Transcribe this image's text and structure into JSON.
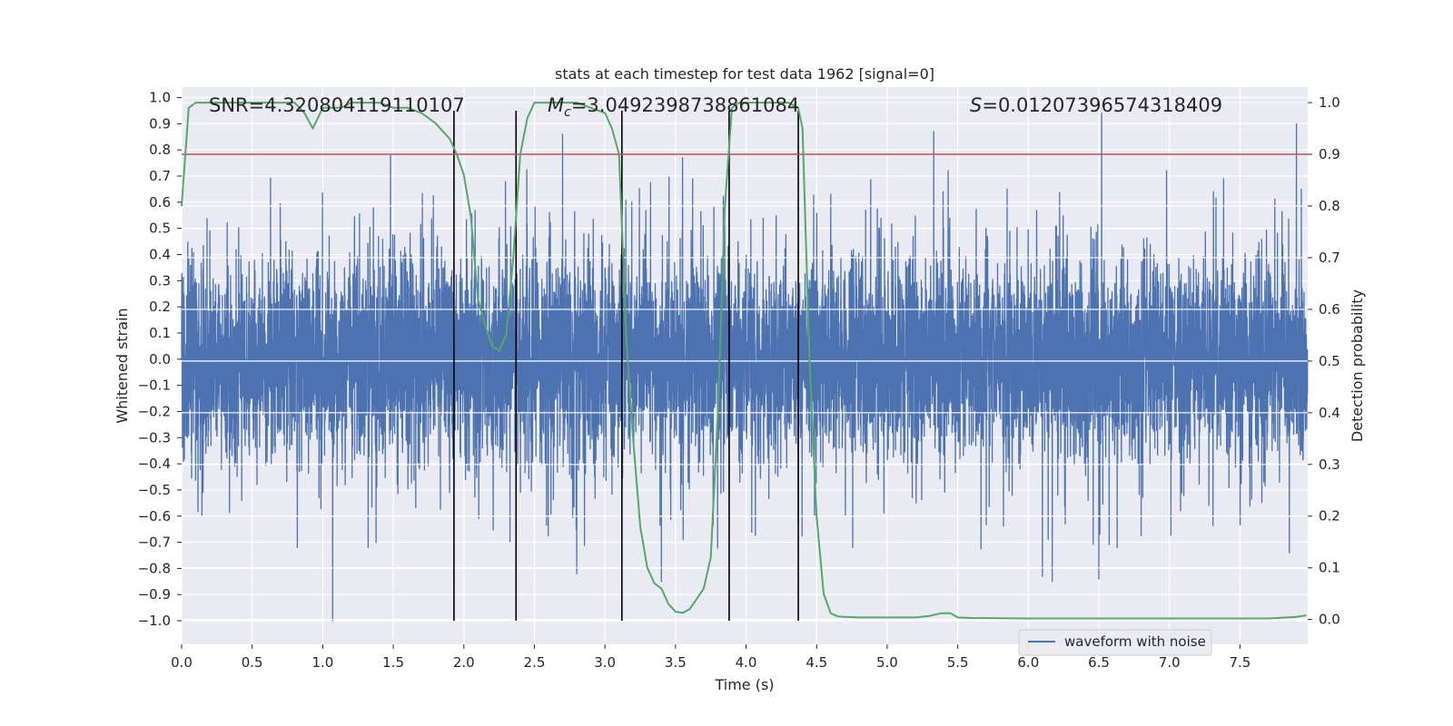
{
  "chart_data": {
    "type": "line",
    "title": "stats at each timestep for test data 1962 [signal=0]",
    "xlabel": "Time (s)",
    "ylabel": "Whitened strain",
    "ylabel_right": "Detection probability",
    "xlim": [
      0.0,
      7.98
    ],
    "ylim": [
      -1.09,
      1.04
    ],
    "ylim_right": [
      -0.048,
      1.03
    ],
    "x_ticks": [
      "0.0",
      "0.5",
      "1.0",
      "1.5",
      "2.0",
      "2.5",
      "3.0",
      "3.5",
      "4.0",
      "4.5",
      "5.0",
      "5.5",
      "6.0",
      "6.5",
      "7.0",
      "7.5"
    ],
    "y_ticks": [
      "1.0",
      "0.9",
      "0.8",
      "0.7",
      "0.6",
      "0.5",
      "0.4",
      "0.3",
      "0.2",
      "0.1",
      "0.0",
      "−0.1",
      "−0.2",
      "−0.3",
      "−0.4",
      "−0.5",
      "−0.6",
      "−0.7",
      "−0.8",
      "−0.9",
      "−1.0"
    ],
    "y_right_ticks": [
      "1.0",
      "0.9",
      "0.8",
      "0.7",
      "0.6",
      "0.5",
      "0.4",
      "0.3",
      "0.2",
      "0.1",
      "0.0"
    ],
    "annotations": {
      "snr": "SNR=4.320804119110107",
      "mc_prefix": "M",
      "mc_sub": "c",
      "mc_value": "=3.0492398738861084",
      "s_prefix": "S",
      "s_value": "=0.01207396574318409"
    },
    "legend": {
      "label": "waveform with noise",
      "placement": "lower-right"
    },
    "threshold": {
      "value": 0.9,
      "axis": "right",
      "color": "#c44e52"
    },
    "vertical_lines": [
      1.93,
      2.37,
      3.12,
      3.88,
      4.37
    ],
    "vertical_line_range": [
      -1.0,
      0.95
    ],
    "series": [
      {
        "name": "waveform with noise",
        "axis": "left",
        "color": "#4c72b0",
        "sample_rate": 1000,
        "duration": 7.98,
        "seed": 1962,
        "envelope": [
          -0.4,
          0.4
        ],
        "peaks": [
          {
            "t": 1.07,
            "v": -1.0
          },
          {
            "t": 1.48,
            "v": 0.78
          },
          {
            "t": 2.7,
            "v": 0.86
          },
          {
            "t": 2.8,
            "v": -0.82
          },
          {
            "t": 3.4,
            "v": -0.85
          },
          {
            "t": 3.55,
            "v": 0.77
          },
          {
            "t": 5.33,
            "v": 0.87
          },
          {
            "t": 6.52,
            "v": 0.94
          },
          {
            "t": 6.17,
            "v": -0.85
          },
          {
            "t": 7.9,
            "v": 0.9
          },
          {
            "t": 7.85,
            "v": -0.74
          },
          {
            "t": 6.98,
            "v": 0.72
          },
          {
            "t": 6.1,
            "v": -0.83
          },
          {
            "t": 6.5,
            "v": -0.84
          },
          {
            "t": 0.82,
            "v": -0.72
          }
        ]
      },
      {
        "name": "detection probability",
        "axis": "right",
        "color": "#55a868",
        "x": [
          0.0,
          0.05,
          0.1,
          0.2,
          0.3,
          0.5,
          0.7,
          0.8,
          0.87,
          0.93,
          1.0,
          1.07,
          1.13,
          1.2,
          1.3,
          1.4,
          1.5,
          1.6,
          1.7,
          1.8,
          1.9,
          1.95,
          2.0,
          2.05,
          2.1,
          2.15,
          2.2,
          2.25,
          2.3,
          2.35,
          2.4,
          2.45,
          2.5,
          2.55,
          2.6,
          2.7,
          2.8,
          2.9,
          3.0,
          3.05,
          3.1,
          3.15,
          3.2,
          3.25,
          3.3,
          3.35,
          3.4,
          3.45,
          3.5,
          3.55,
          3.6,
          3.65,
          3.7,
          3.75,
          3.8,
          3.85,
          3.9,
          3.95,
          4.0,
          4.1,
          4.2,
          4.3,
          4.37,
          4.4,
          4.45,
          4.5,
          4.55,
          4.6,
          4.65,
          4.7,
          4.8,
          5.0,
          5.2,
          5.3,
          5.38,
          5.45,
          5.5,
          5.6,
          6.0,
          6.5,
          7.0,
          7.5,
          7.7,
          7.9,
          7.97
        ],
        "y": [
          0.8,
          0.99,
          1.0,
          1.0,
          1.0,
          1.0,
          1.0,
          1.0,
          0.98,
          0.95,
          0.99,
          0.99,
          0.99,
          1.0,
          1.0,
          1.0,
          0.99,
          0.99,
          0.98,
          0.96,
          0.93,
          0.9,
          0.86,
          0.78,
          0.62,
          0.57,
          0.53,
          0.52,
          0.55,
          0.7,
          0.9,
          0.97,
          1.0,
          1.0,
          1.0,
          1.0,
          1.0,
          0.99,
          0.98,
          0.95,
          0.9,
          0.55,
          0.35,
          0.18,
          0.1,
          0.07,
          0.06,
          0.03,
          0.015,
          0.013,
          0.02,
          0.04,
          0.06,
          0.12,
          0.4,
          0.8,
          0.99,
          1.0,
          1.0,
          1.0,
          1.0,
          1.0,
          0.99,
          0.95,
          0.5,
          0.2,
          0.05,
          0.012,
          0.006,
          0.005,
          0.004,
          0.004,
          0.004,
          0.007,
          0.012,
          0.012,
          0.004,
          0.003,
          0.002,
          0.002,
          0.002,
          0.002,
          0.002,
          0.005,
          0.008
        ]
      }
    ]
  }
}
